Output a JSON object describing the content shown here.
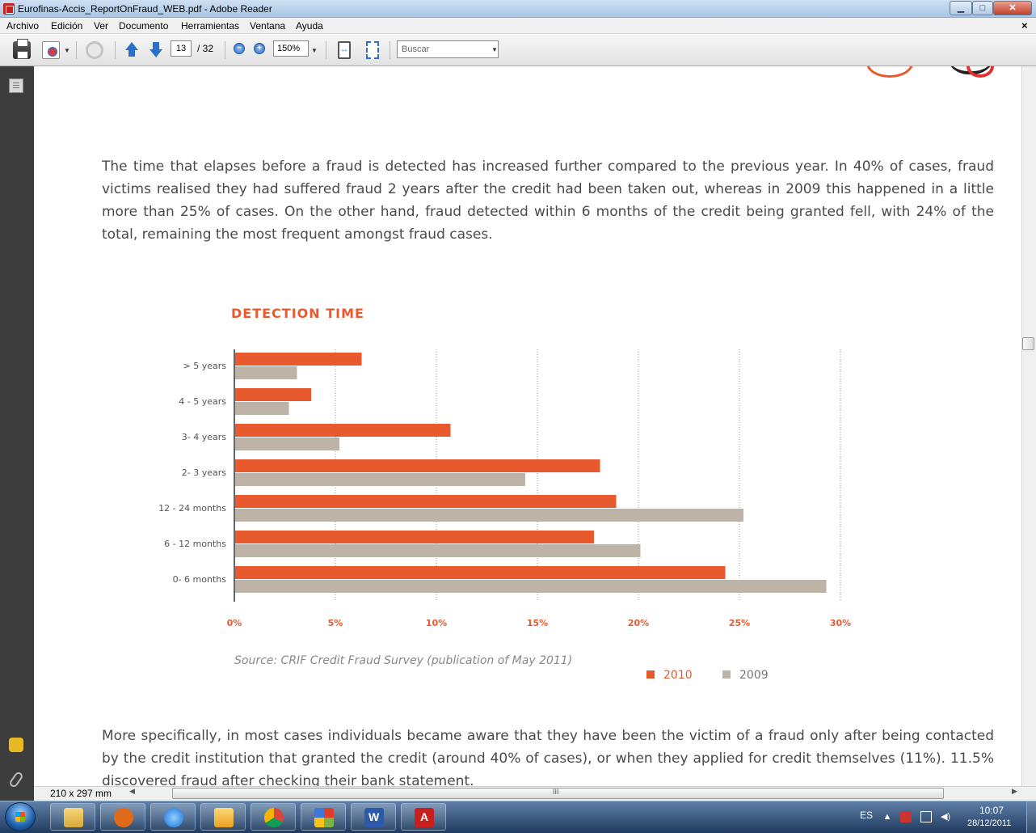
{
  "window": {
    "title": "Eurofinas-Accis_ReportOnFraud_WEB.pdf - Adobe Reader",
    "controls": {
      "minimize": "▁",
      "maximize": "□",
      "close": "✕"
    }
  },
  "menu": {
    "items": [
      "Archivo",
      "Edición",
      "Ver",
      "Documento",
      "Herramientas",
      "Ventana",
      "Ayuda"
    ],
    "close_doc": "×"
  },
  "toolbar": {
    "current_page": "13",
    "total_pages": "/ 32",
    "zoom_out": "−",
    "zoom_in": "+",
    "zoom_level": "150%",
    "search_placeholder": "Buscar",
    "icons": [
      "printer-icon",
      "create-pdf-icon",
      "sync-icon",
      "previous-page-icon",
      "next-page-icon",
      "zoom-out-icon",
      "zoom-in-icon",
      "fit-width-icon",
      "fit-page-icon"
    ]
  },
  "document": {
    "paragraph1": "The time that elapses before a fraud is detected has increased further compared to the previous year. In 40% of cases, fraud victims realised they had suffered fraud 2 years after the credit had been taken out, whereas in 2009 this happened in a little more than 25% of cases. On the other hand, fraud detected within 6 months of the credit being granted fell, with 24% of the total, remaining the most frequent amongst fraud cases.",
    "chart_title": "DETECTION TIME",
    "source": "Source: CRIF Credit Fraud Survey (publication of May 2011)",
    "paragraph2": "More specifically, in most cases individuals became aware that they have been the victim of a fraud only after being contacted by the credit institution that granted the credit (around 40% of cases), or when they applied for credit themselves (11%). 11.5% discovered fraud after checking their bank statement."
  },
  "chart_data": {
    "type": "bar",
    "orientation": "horizontal",
    "title": "DETECTION TIME",
    "categories": [
      "> 5 years",
      "4 - 5 years",
      "3- 4 years",
      "2- 3 years",
      "12 - 24 months",
      "6 - 12 months",
      "0-  6 months"
    ],
    "series": [
      {
        "name": "2010",
        "color": "#e85a2e",
        "values": [
          6.3,
          3.8,
          10.7,
          18.1,
          18.9,
          17.8,
          24.3
        ]
      },
      {
        "name": "2009",
        "color": "#bdb3a6",
        "values": [
          3.1,
          2.7,
          5.2,
          14.4,
          25.2,
          20.1,
          29.3
        ]
      }
    ],
    "x_ticks": [
      "0%",
      "5%",
      "10%",
      "15%",
      "20%",
      "25%",
      "30%"
    ],
    "xlim": [
      0,
      30
    ],
    "grid": "vertical dotted",
    "legend_position": "bottom-right"
  },
  "statusbar": {
    "page_size": "210 x 297 mm",
    "hscroll_grip": "III",
    "left_arrow": "◀",
    "right_arrow": "▶"
  },
  "taskbar": {
    "language": "ES",
    "tray_expand": "▲",
    "time": "10:07",
    "date": "28/12/2011",
    "apps": [
      "windows-explorer",
      "media-player",
      "internet-explorer",
      "outlook",
      "chrome",
      "office",
      "word",
      "adobe-reader"
    ]
  }
}
